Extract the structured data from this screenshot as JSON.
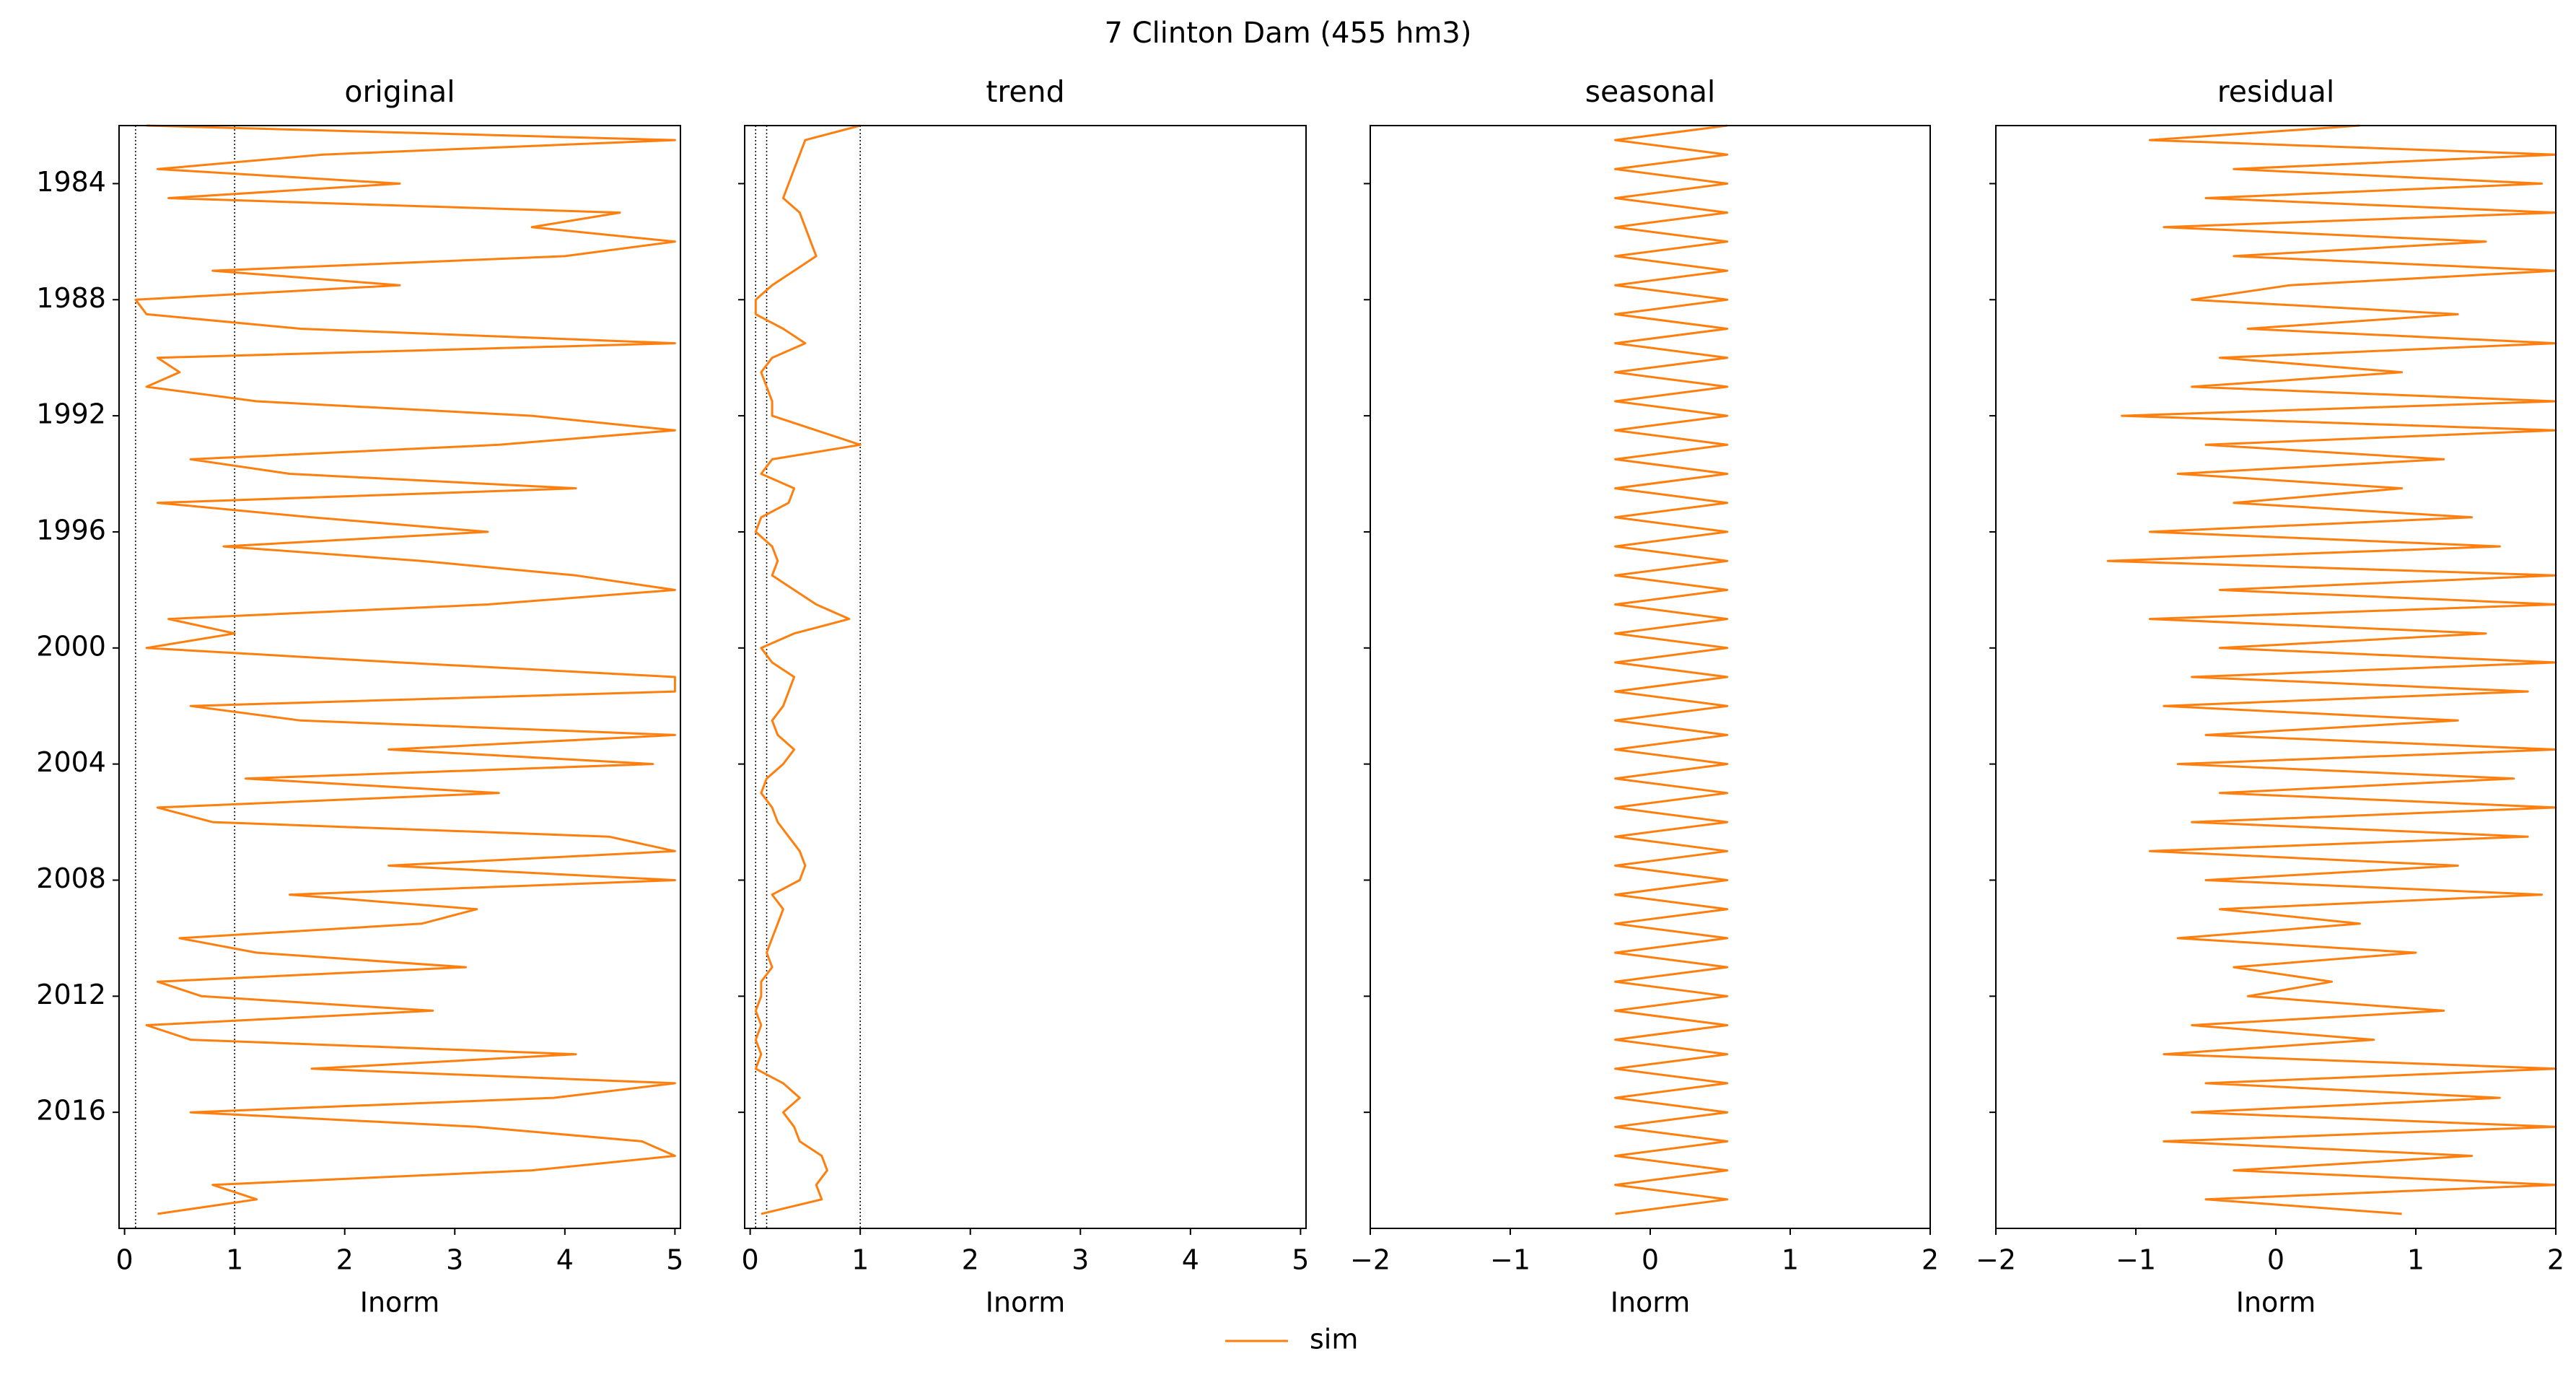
{
  "title": "7  Clinton Dam (455 hm3)",
  "chart_data": [
    {
      "type": "line",
      "title": "original",
      "xlabel": "Inorm",
      "xlim": [
        -0.05,
        5.05
      ],
      "xticks": [
        0,
        1,
        2,
        3,
        4,
        5
      ],
      "ylim": [
        2020,
        1982
      ],
      "yticks": [
        1984,
        1988,
        1992,
        1996,
        2000,
        2004,
        2008,
        2012,
        2016
      ],
      "show_ytick_labels": true,
      "vlines": [
        0.1,
        1
      ],
      "y": [
        1982,
        1982.5,
        1983,
        1983.5,
        1984,
        1984.5,
        1985,
        1985.5,
        1986,
        1986.5,
        1987,
        1987.5,
        1988,
        1988.5,
        1989,
        1989.5,
        1990,
        1990.5,
        1991,
        1991.5,
        1992,
        1992.5,
        1993,
        1993.5,
        1994,
        1994.5,
        1995,
        1995.5,
        1996,
        1996.5,
        1997,
        1997.5,
        1998,
        1998.5,
        1999,
        1999.5,
        2000,
        2000.5,
        2001,
        2001.5,
        2002,
        2002.5,
        2003,
        2003.5,
        2004,
        2004.5,
        2005,
        2005.5,
        2006,
        2006.5,
        2007,
        2007.5,
        2008,
        2008.5,
        2009,
        2009.5,
        2010,
        2010.5,
        2011,
        2011.5,
        2012,
        2012.5,
        2013,
        2013.5,
        2014,
        2014.5,
        2015,
        2015.5,
        2016,
        2016.5,
        2017,
        2017.5,
        2018,
        2018.5,
        2019,
        2019.5
      ],
      "series": [
        {
          "name": "sim",
          "color": "#ff7f0e",
          "values": [
            0.2,
            5.0,
            1.8,
            0.3,
            2.5,
            0.4,
            4.5,
            3.7,
            5.0,
            4.0,
            0.8,
            2.5,
            0.1,
            0.2,
            1.6,
            5.0,
            0.3,
            0.5,
            0.2,
            1.2,
            3.7,
            5.0,
            3.4,
            0.6,
            1.5,
            4.1,
            0.3,
            1.7,
            3.3,
            0.9,
            2.7,
            4.1,
            5.0,
            3.3,
            0.4,
            1.0,
            0.2,
            2.5,
            5.0,
            5.0,
            0.6,
            1.6,
            5.0,
            2.4,
            4.8,
            1.1,
            3.4,
            0.3,
            0.8,
            4.4,
            5.0,
            2.4,
            5.0,
            1.5,
            3.2,
            2.7,
            0.5,
            1.2,
            3.1,
            0.3,
            0.7,
            2.8,
            0.2,
            0.6,
            4.1,
            1.7,
            5.0,
            3.9,
            0.6,
            3.2,
            4.7,
            5.0,
            3.7,
            0.8,
            1.2,
            0.3
          ]
        }
      ]
    },
    {
      "type": "line",
      "title": "trend",
      "xlabel": "Inorm",
      "xlim": [
        -0.05,
        5.05
      ],
      "xticks": [
        0,
        1,
        2,
        3,
        4,
        5
      ],
      "ylim": [
        2020,
        1982
      ],
      "yticks": [
        1984,
        1988,
        1992,
        1996,
        2000,
        2004,
        2008,
        2012,
        2016
      ],
      "show_ytick_labels": false,
      "vlines": [
        0.05,
        0.15,
        1
      ],
      "y": [
        1982,
        1982.5,
        1983,
        1983.5,
        1984,
        1984.5,
        1985,
        1985.5,
        1986,
        1986.5,
        1987,
        1987.5,
        1988,
        1988.5,
        1989,
        1989.5,
        1990,
        1990.5,
        1991,
        1991.5,
        1992,
        1992.5,
        1993,
        1993.5,
        1994,
        1994.5,
        1995,
        1995.5,
        1996,
        1996.5,
        1997,
        1997.5,
        1998,
        1998.5,
        1999,
        1999.5,
        2000,
        2000.5,
        2001,
        2001.5,
        2002,
        2002.5,
        2003,
        2003.5,
        2004,
        2004.5,
        2005,
        2005.5,
        2006,
        2006.5,
        2007,
        2007.5,
        2008,
        2008.5,
        2009,
        2009.5,
        2010,
        2010.5,
        2011,
        2011.5,
        2012,
        2012.5,
        2013,
        2013.5,
        2014,
        2014.5,
        2015,
        2015.5,
        2016,
        2016.5,
        2017,
        2017.5,
        2018,
        2018.5,
        2019,
        2019.5
      ],
      "series": [
        {
          "color": "#ff7f0e",
          "values": [
            1.0,
            0.5,
            0.45,
            0.4,
            0.35,
            0.3,
            0.45,
            0.5,
            0.55,
            0.6,
            0.4,
            0.2,
            0.05,
            0.05,
            0.3,
            0.5,
            0.2,
            0.1,
            0.15,
            0.2,
            0.2,
            0.6,
            1.0,
            0.2,
            0.1,
            0.4,
            0.35,
            0.1,
            0.05,
            0.2,
            0.25,
            0.2,
            0.4,
            0.6,
            0.9,
            0.4,
            0.1,
            0.2,
            0.4,
            0.35,
            0.3,
            0.2,
            0.25,
            0.4,
            0.3,
            0.15,
            0.1,
            0.2,
            0.25,
            0.35,
            0.45,
            0.5,
            0.45,
            0.2,
            0.3,
            0.25,
            0.2,
            0.15,
            0.2,
            0.1,
            0.1,
            0.05,
            0.1,
            0.05,
            0.1,
            0.05,
            0.3,
            0.45,
            0.3,
            0.4,
            0.45,
            0.65,
            0.7,
            0.6,
            0.65,
            0.1
          ]
        }
      ]
    },
    {
      "type": "line",
      "title": "seasonal",
      "xlabel": "Inorm",
      "xlim": [
        -2,
        2
      ],
      "xticks": [
        {
          "value": -2,
          "label": "−2"
        },
        {
          "value": -1,
          "label": "−1"
        },
        0,
        1,
        2
      ],
      "ylim": [
        2020,
        1982
      ],
      "yticks": [
        1984,
        1988,
        1992,
        1996,
        2000,
        2004,
        2008,
        2012,
        2016
      ],
      "show_ytick_labels": false,
      "y": [
        1982,
        1982.5,
        1983,
        1983.5,
        1984,
        1984.5,
        1985,
        1985.5,
        1986,
        1986.5,
        1987,
        1987.5,
        1988,
        1988.5,
        1989,
        1989.5,
        1990,
        1990.5,
        1991,
        1991.5,
        1992,
        1992.5,
        1993,
        1993.5,
        1994,
        1994.5,
        1995,
        1995.5,
        1996,
        1996.5,
        1997,
        1997.5,
        1998,
        1998.5,
        1999,
        1999.5,
        2000,
        2000.5,
        2001,
        2001.5,
        2002,
        2002.5,
        2003,
        2003.5,
        2004,
        2004.5,
        2005,
        2005.5,
        2006,
        2006.5,
        2007,
        2007.5,
        2008,
        2008.5,
        2009,
        2009.5,
        2010,
        2010.5,
        2011,
        2011.5,
        2012,
        2012.5,
        2013,
        2013.5,
        2014,
        2014.5,
        2015,
        2015.5,
        2016,
        2016.5,
        2017,
        2017.5,
        2018,
        2018.5,
        2019,
        2019.5
      ],
      "series": [
        {
          "color": "#ff7f0e",
          "values": [
            0.55,
            -0.25,
            0.55,
            -0.25,
            0.55,
            -0.25,
            0.55,
            -0.25,
            0.55,
            -0.25,
            0.55,
            -0.25,
            0.55,
            -0.25,
            0.55,
            -0.25,
            0.55,
            -0.25,
            0.55,
            -0.25,
            0.55,
            -0.25,
            0.55,
            -0.25,
            0.55,
            -0.25,
            0.55,
            -0.25,
            0.55,
            -0.25,
            0.55,
            -0.25,
            0.55,
            -0.25,
            0.55,
            -0.25,
            0.55,
            -0.25,
            0.55,
            -0.25,
            0.55,
            -0.25,
            0.55,
            -0.25,
            0.55,
            -0.25,
            0.55,
            -0.25,
            0.55,
            -0.25,
            0.55,
            -0.25,
            0.55,
            -0.25,
            0.55,
            -0.25,
            0.55,
            -0.25,
            0.55,
            -0.25,
            0.55,
            -0.25,
            0.55,
            -0.25,
            0.55,
            -0.25,
            0.55,
            -0.25,
            0.55,
            -0.25,
            0.55,
            -0.25,
            0.55,
            -0.25,
            0.55,
            -0.25
          ]
        }
      ]
    },
    {
      "type": "line",
      "title": "residual",
      "xlabel": "Inorm",
      "xlim": [
        -2,
        2
      ],
      "xticks": [
        {
          "value": -2,
          "label": "−2"
        },
        {
          "value": -1,
          "label": "−1"
        },
        0,
        1,
        2
      ],
      "ylim": [
        2020,
        1982
      ],
      "yticks": [
        1984,
        1988,
        1992,
        1996,
        2000,
        2004,
        2008,
        2012,
        2016
      ],
      "show_ytick_labels": false,
      "y": [
        1982,
        1982.5,
        1983,
        1983.5,
        1984,
        1984.5,
        1985,
        1985.5,
        1986,
        1986.5,
        1987,
        1987.5,
        1988,
        1988.5,
        1989,
        1989.5,
        1990,
        1990.5,
        1991,
        1991.5,
        1992,
        1992.5,
        1993,
        1993.5,
        1994,
        1994.5,
        1995,
        1995.5,
        1996,
        1996.5,
        1997,
        1997.5,
        1998,
        1998.5,
        1999,
        1999.5,
        2000,
        2000.5,
        2001,
        2001.5,
        2002,
        2002.5,
        2003,
        2003.5,
        2004,
        2004.5,
        2005,
        2005.5,
        2006,
        2006.5,
        2007,
        2007.5,
        2008,
        2008.5,
        2009,
        2009.5,
        2010,
        2010.5,
        2011,
        2011.5,
        2012,
        2012.5,
        2013,
        2013.5,
        2014,
        2014.5,
        2015,
        2015.5,
        2016,
        2016.5,
        2017,
        2017.5,
        2018,
        2018.5,
        2019,
        2019.5
      ],
      "series": [
        {
          "color": "#ff7f0e",
          "values": [
            0.6,
            -0.9,
            2,
            -0.3,
            1.9,
            -0.5,
            2,
            -0.8,
            1.5,
            -0.3,
            2,
            0.1,
            -0.6,
            1.3,
            -0.2,
            2,
            -0.4,
            0.9,
            -0.6,
            2,
            -1.1,
            2,
            -0.5,
            1.2,
            -0.7,
            0.9,
            -0.3,
            1.4,
            -0.9,
            1.6,
            -1.2,
            2,
            -0.4,
            2,
            -0.9,
            1.5,
            -0.4,
            2,
            -0.6,
            1.8,
            -0.8,
            1.3,
            -0.5,
            2,
            -0.7,
            1.7,
            -0.4,
            2,
            -0.6,
            1.8,
            -0.9,
            1.3,
            -0.5,
            1.9,
            -0.4,
            0.6,
            -0.7,
            1.0,
            -0.3,
            0.4,
            -0.2,
            1.2,
            -0.6,
            0.7,
            -0.8,
            2,
            -0.5,
            1.6,
            -0.6,
            2,
            -0.8,
            1.4,
            -0.3,
            2,
            -0.5,
            0.9
          ]
        }
      ]
    }
  ]
}
